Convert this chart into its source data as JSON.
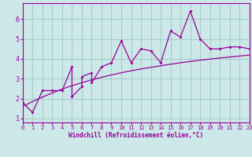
{
  "xlabel": "Windchill (Refroidissement éolien,°C)",
  "bg_color": "#cce8e8",
  "grid_color": "#aacccc",
  "line_color": "#990099",
  "scatter_x": [
    0,
    1,
    2,
    3,
    4,
    5,
    5,
    6,
    6,
    7,
    7,
    8,
    9,
    10,
    11,
    12,
    13,
    14,
    15,
    16,
    17,
    18,
    19,
    20,
    21,
    22,
    23
  ],
  "scatter_y": [
    1.8,
    1.3,
    2.4,
    2.4,
    2.4,
    3.6,
    2.1,
    2.6,
    3.1,
    3.3,
    2.8,
    3.6,
    3.8,
    4.9,
    3.8,
    4.5,
    4.4,
    3.8,
    5.4,
    5.1,
    6.4,
    5.0,
    4.5,
    4.5,
    4.6,
    4.6,
    4.5
  ],
  "smooth_x": [
    0,
    1,
    2,
    3,
    4,
    5,
    6,
    7,
    8,
    9,
    10,
    11,
    12,
    13,
    14,
    15,
    16,
    17,
    18,
    19,
    20,
    21,
    22,
    23
  ],
  "smooth_y": [
    1.6,
    1.85,
    2.08,
    2.28,
    2.48,
    2.65,
    2.8,
    2.94,
    3.07,
    3.19,
    3.3,
    3.4,
    3.49,
    3.57,
    3.65,
    3.73,
    3.8,
    3.87,
    3.93,
    3.99,
    4.04,
    4.09,
    4.14,
    4.19
  ],
  "xlim": [
    0,
    23
  ],
  "ylim": [
    0.8,
    6.8
  ],
  "xticks": [
    0,
    1,
    2,
    3,
    4,
    5,
    6,
    7,
    8,
    9,
    10,
    11,
    12,
    13,
    14,
    15,
    16,
    17,
    18,
    19,
    20,
    21,
    22,
    23
  ],
  "yticks": [
    1,
    2,
    3,
    4,
    5,
    6
  ]
}
